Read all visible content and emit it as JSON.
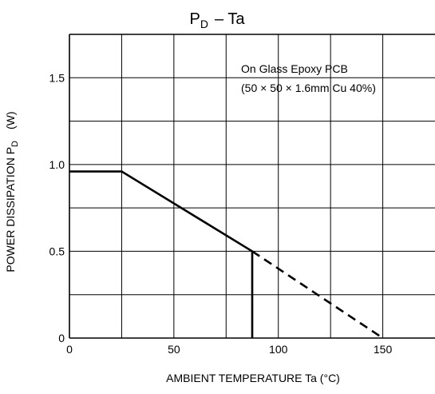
{
  "chart_data": {
    "type": "line",
    "title": {
      "p": "P",
      "p_sub": "D",
      "rest": "– Ta"
    },
    "xlabel": "AMBIENT TEMPERATURE   Ta   (°C)",
    "ylabel": {
      "main": "POWER DISSIPATION   P",
      "sub": "D",
      "unit": "(W)"
    },
    "xlim": [
      0,
      175
    ],
    "ylim": [
      0,
      1.75
    ],
    "x_ticks": [
      {
        "value": 0,
        "label": "0"
      },
      {
        "value": 50,
        "label": "50"
      },
      {
        "value": 100,
        "label": "100"
      },
      {
        "value": 150,
        "label": "150"
      }
    ],
    "x_grid": [
      25,
      50,
      75,
      100,
      125,
      150
    ],
    "y_ticks": [
      {
        "value": 0,
        "label": "0"
      },
      {
        "value": 0.5,
        "label": "0.5"
      },
      {
        "value": 1.0,
        "label": "1.0"
      },
      {
        "value": 1.5,
        "label": "1.5"
      }
    ],
    "y_grid": [
      0.25,
      0.5,
      0.75,
      1.0,
      1.25,
      1.5
    ],
    "grid": true,
    "annotation": {
      "line1": "On Glass Epoxy PCB",
      "line2": "(50 × 50 × 1.6mm    Cu 40%)"
    },
    "series": [
      {
        "style": "solid",
        "x": [
          0,
          25,
          87.5,
          87.5
        ],
        "y": [
          0.96,
          0.96,
          0.5,
          0
        ]
      },
      {
        "style": "dashed",
        "x": [
          87.5,
          150
        ],
        "y": [
          0.5,
          0
        ]
      }
    ],
    "colors": {
      "line": "#000000",
      "grid": "#000000",
      "background": "#ffffff"
    }
  }
}
